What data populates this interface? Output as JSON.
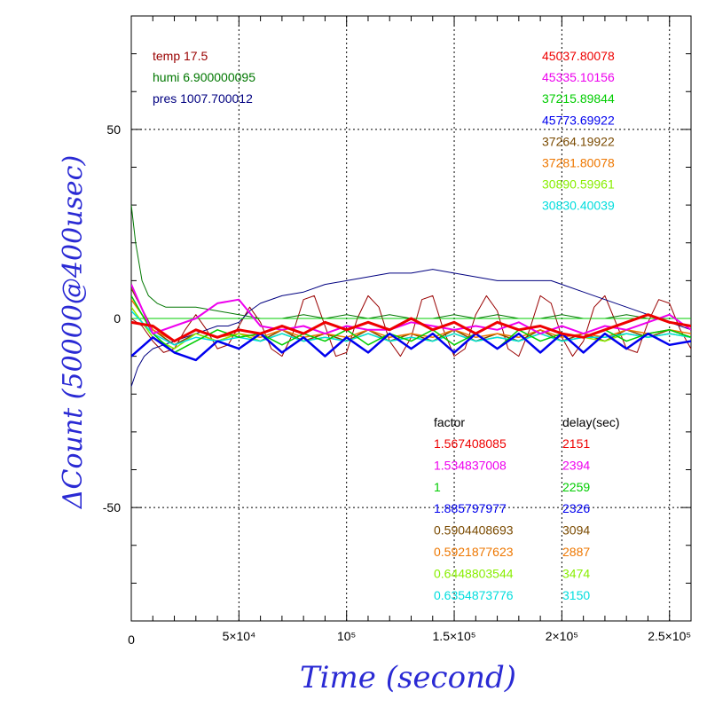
{
  "chart_data": {
    "type": "line",
    "xlabel": "Time (second)",
    "ylabel": "ΔCount (50000@400usec)",
    "xlim": [
      0,
      260000
    ],
    "ylim": [
      -80,
      80
    ],
    "grid": true,
    "x_ticks": [
      {
        "value": 0,
        "label": "0"
      },
      {
        "value": 50000,
        "label": "5×10⁴"
      },
      {
        "value": 100000,
        "label": "10⁵"
      },
      {
        "value": 150000,
        "label": "1.5×10⁵"
      },
      {
        "value": 200000,
        "label": "2×10⁵"
      },
      {
        "value": 250000,
        "label": "2.5×10⁵"
      }
    ],
    "y_ticks": [
      {
        "value": 50,
        "label": "50"
      },
      {
        "value": 0,
        "label": "0"
      },
      {
        "value": -50,
        "label": "-50"
      }
    ],
    "environment": [
      {
        "text": "temp 17.5",
        "color": "#990000"
      },
      {
        "text": "humi 6.900000095",
        "color": "#007700"
      },
      {
        "text": "pres 1007.700012",
        "color": "#000080"
      }
    ],
    "factor_header": "factor",
    "delay_header": "delay(sec)",
    "series": [
      {
        "mean": "45037.80078",
        "factor": "1.567408085",
        "delay": "2151",
        "color": "#ee0000",
        "lw": 3.0,
        "x": [
          0,
          10000,
          20000,
          30000,
          40000,
          50000,
          60000,
          70000,
          80000,
          90000,
          100000,
          110000,
          120000,
          130000,
          140000,
          150000,
          160000,
          170000,
          180000,
          190000,
          200000,
          210000,
          220000,
          230000,
          240000,
          250000,
          260000
        ],
        "y": [
          -1,
          -2,
          -6,
          -3,
          -5,
          -3,
          -4,
          -2,
          -4,
          -1,
          -3,
          -1,
          -3,
          0,
          -3,
          -1,
          -4,
          -1,
          -3,
          -2,
          -4,
          -5,
          -3,
          -1,
          1,
          -1,
          -2
        ]
      },
      {
        "mean": "45335.10156",
        "factor": "1.534837008",
        "delay": "2394",
        "color": "#ee00ee",
        "lw": 2.0,
        "x": [
          0,
          10000,
          20000,
          30000,
          40000,
          50000,
          60000,
          70000,
          80000,
          90000,
          100000,
          110000,
          120000,
          130000,
          140000,
          150000,
          160000,
          170000,
          180000,
          190000,
          200000,
          210000,
          220000,
          230000,
          240000,
          250000,
          260000
        ],
        "y": [
          9,
          -4,
          -2,
          0,
          4,
          5,
          -2,
          -3,
          -2,
          -4,
          -2,
          -3,
          -3,
          -1,
          -2,
          -3,
          -2,
          -3,
          -1,
          -4,
          -2,
          -4,
          -2,
          -3,
          -1,
          1,
          -3
        ]
      },
      {
        "mean": "37215.89844",
        "factor": "1",
        "delay": "2259",
        "color": "#00cc00",
        "lw": 1.5,
        "x": [
          0,
          10000,
          20000,
          30000,
          40000,
          50000,
          60000,
          70000,
          80000,
          90000,
          100000,
          110000,
          120000,
          130000,
          140000,
          150000,
          160000,
          170000,
          180000,
          190000,
          200000,
          210000,
          220000,
          230000,
          240000,
          250000,
          260000
        ],
        "y": [
          6,
          -4,
          -9,
          -6,
          -3,
          -5,
          -4,
          -7,
          -4,
          -6,
          -3,
          -7,
          -4,
          -6,
          -3,
          -7,
          -4,
          -8,
          -3,
          -6,
          -4,
          -5,
          -3,
          -6,
          -4,
          -3,
          -5
        ]
      },
      {
        "mean": "45773.69922",
        "factor": "1.885797977",
        "delay": "2326",
        "color": "#0000ee",
        "lw": 2.5,
        "x": [
          0,
          10000,
          20000,
          30000,
          40000,
          50000,
          60000,
          70000,
          80000,
          90000,
          100000,
          110000,
          120000,
          130000,
          140000,
          150000,
          160000,
          170000,
          180000,
          190000,
          200000,
          210000,
          220000,
          230000,
          240000,
          250000,
          260000
        ],
        "y": [
          -10,
          -5,
          -9,
          -11,
          -6,
          -8,
          -4,
          -9,
          -5,
          -10,
          -5,
          -9,
          -4,
          -8,
          -4,
          -9,
          -4,
          -8,
          -4,
          -9,
          -4,
          -9,
          -4,
          -8,
          -4,
          -7,
          -6
        ]
      },
      {
        "mean": "37264.19922",
        "factor": "0.5904408693",
        "delay": "3094",
        "color": "#7a4a00",
        "lw": 1.5,
        "x": [
          0,
          10000,
          20000,
          30000,
          40000,
          50000,
          60000,
          70000,
          80000,
          90000,
          100000,
          110000,
          120000,
          130000,
          140000,
          150000,
          160000,
          170000,
          180000,
          190000,
          200000,
          210000,
          220000,
          230000,
          240000,
          250000,
          260000
        ],
        "y": [
          8,
          -3,
          -7,
          -4,
          -6,
          -4,
          -6,
          -3,
          -6,
          -4,
          -6,
          -3,
          -6,
          -4,
          -6,
          -3,
          -6,
          -4,
          -6,
          -3,
          -6,
          -4,
          -6,
          -3,
          -5,
          -3,
          -5
        ]
      },
      {
        "mean": "37281.80078",
        "factor": "0.5921877623",
        "delay": "2887",
        "color": "#ee7700",
        "lw": 1.5,
        "x": [
          0,
          10000,
          20000,
          30000,
          40000,
          50000,
          60000,
          70000,
          80000,
          90000,
          100000,
          110000,
          120000,
          130000,
          140000,
          150000,
          160000,
          170000,
          180000,
          190000,
          200000,
          210000,
          220000,
          230000,
          240000,
          250000,
          260000
        ],
        "y": [
          5,
          -3,
          -6,
          -3,
          -5,
          -4,
          -5,
          -3,
          -5,
          -4,
          -5,
          -3,
          -5,
          -4,
          -5,
          -3,
          -5,
          -4,
          -5,
          -3,
          -5,
          -4,
          -5,
          -3,
          -4,
          -3,
          -4
        ]
      },
      {
        "mean": "30890.59961",
        "factor": "0.6448803544",
        "delay": "3474",
        "color": "#88ee00",
        "lw": 1.5,
        "x": [
          0,
          10000,
          20000,
          30000,
          40000,
          50000,
          60000,
          70000,
          80000,
          90000,
          100000,
          110000,
          120000,
          130000,
          140000,
          150000,
          160000,
          170000,
          180000,
          190000,
          200000,
          210000,
          220000,
          230000,
          240000,
          250000,
          260000
        ],
        "y": [
          3,
          -5,
          -8,
          -4,
          -6,
          -4,
          -6,
          -4,
          -6,
          -5,
          -6,
          -4,
          -6,
          -5,
          -6,
          -4,
          -6,
          -5,
          -6,
          -4,
          -6,
          -5,
          -6,
          -4,
          -5,
          -4,
          -5
        ]
      },
      {
        "mean": "30830.40039",
        "factor": "0.6354873776",
        "delay": "3150",
        "color": "#00dddd",
        "lw": 1.5,
        "x": [
          0,
          10000,
          20000,
          30000,
          40000,
          50000,
          60000,
          70000,
          80000,
          90000,
          100000,
          110000,
          120000,
          130000,
          140000,
          150000,
          160000,
          170000,
          180000,
          190000,
          200000,
          210000,
          220000,
          230000,
          240000,
          250000,
          260000
        ],
        "y": [
          2,
          -4,
          -7,
          -5,
          -6,
          -5,
          -6,
          -4,
          -6,
          -5,
          -6,
          -4,
          -6,
          -5,
          -6,
          -4,
          -6,
          -5,
          -6,
          -4,
          -6,
          -5,
          -5,
          -4,
          -5,
          -4,
          -5
        ]
      }
    ],
    "env_curves": [
      {
        "name": "temp",
        "color": "#990000",
        "lw": 1,
        "x": [
          0,
          5000,
          10000,
          15000,
          20000,
          25000,
          30000,
          35000,
          40000,
          45000,
          50000,
          55000,
          60000,
          65000,
          70000,
          75000,
          80000,
          85000,
          90000,
          95000,
          100000,
          105000,
          110000,
          115000,
          120000,
          125000,
          130000,
          135000,
          140000,
          145000,
          150000,
          155000,
          160000,
          165000,
          170000,
          175000,
          180000,
          185000,
          190000,
          195000,
          200000,
          205000,
          210000,
          215000,
          220000,
          225000,
          230000,
          235000,
          240000,
          245000,
          250000,
          255000,
          260000
        ],
        "y": [
          0,
          -2,
          -6,
          -9,
          -8,
          -3,
          1,
          -3,
          -8,
          -7,
          -2,
          3,
          -1,
          -8,
          -10,
          -4,
          5,
          6,
          -2,
          -10,
          -9,
          0,
          6,
          3,
          -6,
          -10,
          -5,
          5,
          6,
          -3,
          -10,
          -8,
          1,
          6,
          2,
          -8,
          -10,
          -3,
          6,
          4,
          -5,
          -10,
          -6,
          3,
          6,
          -1,
          -8,
          -9,
          -1,
          5,
          4,
          -3,
          -8
        ]
      },
      {
        "name": "humi",
        "color": "#007700",
        "lw": 1,
        "x": [
          0,
          2000,
          5000,
          8000,
          12000,
          16000,
          20000,
          25000,
          30000,
          40000,
          50000,
          60000,
          70000,
          80000,
          90000,
          100000,
          110000,
          120000,
          130000,
          140000,
          150000,
          160000,
          170000,
          180000,
          190000,
          200000,
          210000,
          220000,
          230000,
          240000,
          250000,
          260000
        ],
        "y": [
          30,
          20,
          10,
          6,
          4,
          3,
          3,
          3,
          3,
          2,
          1,
          0,
          0,
          1,
          0,
          1,
          0,
          1,
          0,
          0,
          1,
          0,
          1,
          0,
          0,
          1,
          0,
          0,
          1,
          0,
          0,
          0
        ]
      },
      {
        "name": "pres",
        "color": "#000080",
        "lw": 1,
        "x": [
          0,
          3000,
          6000,
          10000,
          15000,
          20000,
          25000,
          30000,
          35000,
          40000,
          45000,
          50000,
          55000,
          60000,
          70000,
          80000,
          90000,
          100000,
          110000,
          120000,
          130000,
          140000,
          150000,
          160000,
          170000,
          180000,
          190000,
          195000,
          200000,
          210000,
          220000,
          230000,
          240000,
          250000,
          260000
        ],
        "y": [
          -18,
          -13,
          -10,
          -8,
          -7,
          -6,
          -5,
          -4,
          -3,
          -2,
          -2,
          -1,
          2,
          4,
          6,
          7,
          9,
          10,
          11,
          12,
          12,
          13,
          12,
          11,
          10,
          10,
          10,
          10,
          9,
          7,
          5,
          3,
          1,
          -1,
          -3
        ]
      },
      {
        "name": "zero",
        "color": "#00cc00",
        "lw": 1,
        "x": [
          0,
          260000
        ],
        "y": [
          0,
          0
        ]
      }
    ]
  }
}
